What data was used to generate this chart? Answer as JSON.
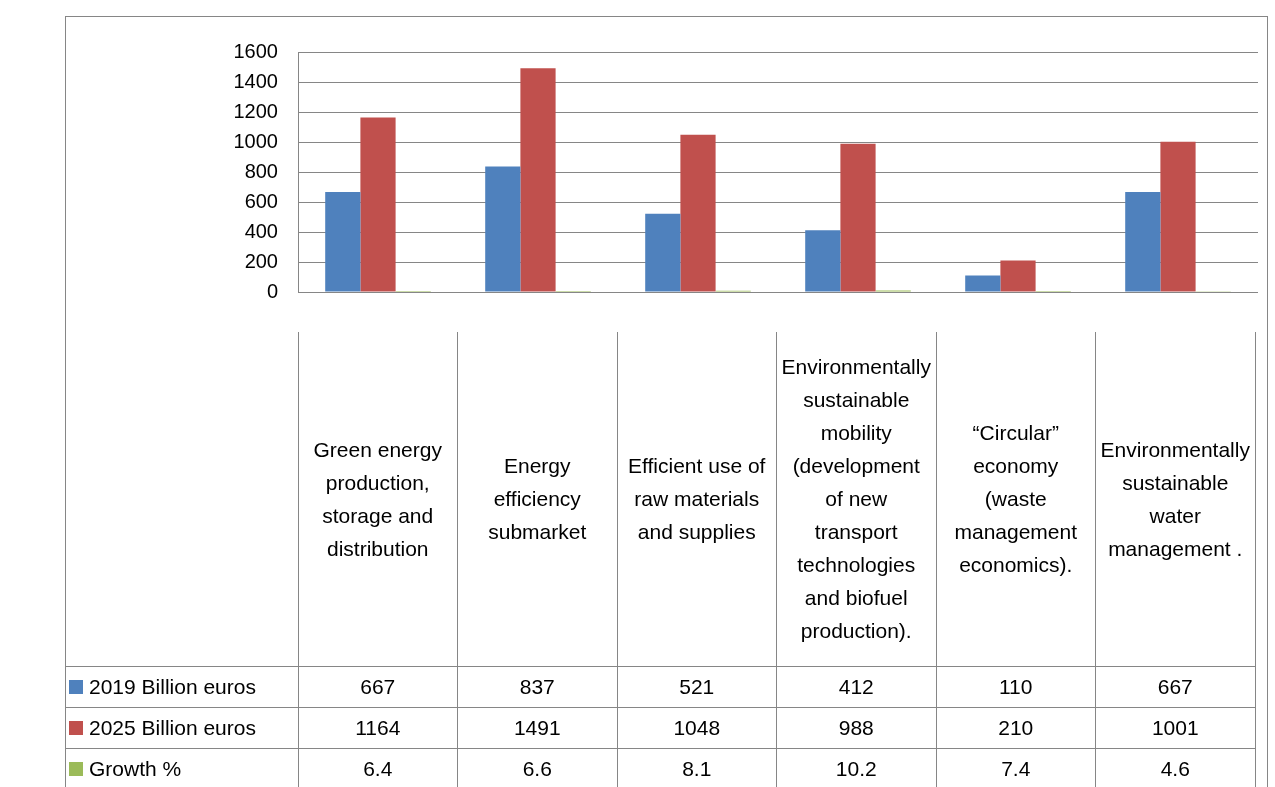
{
  "chart_data": {
    "type": "bar",
    "categories": [
      "Green energy production, storage and distribution",
      "Energy efficiency submarket",
      "Efficient use of raw materials and supplies",
      "Environmentally sustainable mobility (development of new transport technologies and biofuel production).",
      "“Circular” economy (waste management economics).",
      "Environmentally sustainable water management ."
    ],
    "series": [
      {
        "name": "2019 Billion euros",
        "color": "#4f81bd",
        "values": [
          667,
          837,
          521,
          412,
          110,
          667
        ]
      },
      {
        "name": "2025 Billion euros",
        "color": "#c0504d",
        "values": [
          1164,
          1491,
          1048,
          988,
          210,
          1001
        ]
      },
      {
        "name": "Growth %",
        "color": "#9bbb59",
        "values": [
          6.4,
          6.6,
          8.1,
          10.2,
          7.4,
          4.6
        ]
      }
    ],
    "ylim": [
      0,
      1600
    ],
    "yticks": [
      0,
      200,
      400,
      600,
      800,
      1000,
      1200,
      1400,
      1600
    ],
    "grid": "y",
    "legend": "left",
    "data_labels": true
  }
}
